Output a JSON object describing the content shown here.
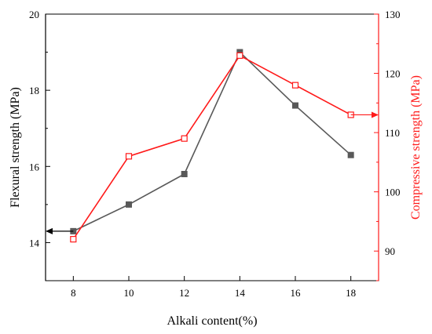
{
  "chart_data": {
    "type": "line",
    "x": [
      8,
      10,
      12,
      14,
      16,
      18
    ],
    "xlabel": "Alkali content(%)",
    "xlim": [
      7,
      19
    ],
    "x_ticks": [
      "8",
      "10",
      "12",
      "14",
      "16",
      "18"
    ],
    "left_axis": {
      "label": "Flexural strength (MPa)",
      "lim": [
        13,
        20
      ],
      "ticks": [
        "14",
        "16",
        "18",
        "20"
      ],
      "color": "#000000"
    },
    "right_axis": {
      "label": "Compressive strength (MPa)",
      "lim": [
        85,
        130
      ],
      "ticks": [
        "90",
        "100",
        "110",
        "120",
        "130"
      ],
      "color": "#ff1a1a"
    },
    "series": [
      {
        "axis": "left",
        "values": [
          14.3,
          15.0,
          15.8,
          19.0,
          17.6,
          16.3
        ],
        "color": "#595959",
        "marker": "filled-square"
      },
      {
        "axis": "right",
        "values": [
          92,
          106,
          109,
          123,
          118,
          113
        ],
        "color": "#ff1a1a",
        "marker": "open-square"
      }
    ],
    "legend": "none",
    "grid": false,
    "annotations": [
      {
        "type": "arrow",
        "points_to": "left-axis",
        "at_value": 14.3,
        "color": "#000000"
      },
      {
        "type": "arrow",
        "points_to": "right-axis",
        "at_value": 113,
        "color": "#ff1a1a"
      }
    ]
  }
}
